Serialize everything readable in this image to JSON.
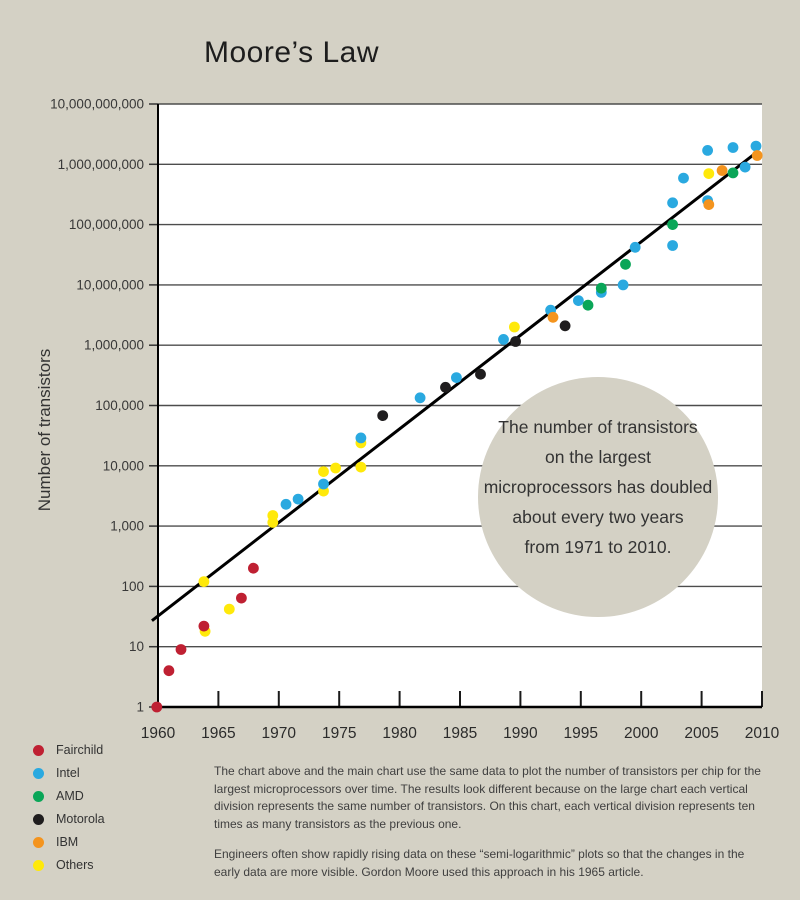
{
  "title": "Moore’s Law",
  "y_axis_title": "Number of transistors",
  "colors": {
    "background": "#d4d1c5",
    "plot_background": "#ffffff",
    "gridline": "#4d4d4d",
    "axis": "#000000",
    "trend_line": "#000000",
    "tick_text": "#383838"
  },
  "legend": {
    "items": [
      {
        "label": "Fairchild",
        "color": "#bf2032"
      },
      {
        "label": "Intel",
        "color": "#2aa9e0"
      },
      {
        "label": "AMD",
        "color": "#0aa658"
      },
      {
        "label": "Motorola",
        "color": "#1f1d1e"
      },
      {
        "label": "IBM",
        "color": "#f4941e"
      },
      {
        "label": "Others",
        "color": "#ffe90a"
      }
    ]
  },
  "footnotes": {
    "para1": "The chart above and the main chart use the same data to plot the number of transistors per chip for the largest microprocessors over time. The results look different because on the large chart each vertical division represents the same number of transistors. On this chart, each vertical division represents ten times as many transistors as the previous one.",
    "para2": "Engineers often show rapidly rising data on these “semi-logarithmic” plots so that the changes in the early data are more visible. Gordon Moore used this approach in his 1965 article."
  },
  "chart_data": {
    "type": "scatter",
    "x_range": [
      1960,
      2010
    ],
    "y_log_range": [
      0,
      10
    ],
    "x_ticks": [
      1960,
      1965,
      1970,
      1975,
      1980,
      1985,
      1990,
      1995,
      2000,
      2005,
      2010
    ],
    "y_tick_labels": [
      "10,000,000,000",
      "1,000,000,000",
      "100,000,000",
      "10,000,000",
      "1,000,000",
      "100,000",
      "10,000",
      "1,000",
      "100",
      "10",
      "1"
    ],
    "annotation": {
      "lines": [
        "The number of transistors",
        "on the largest",
        "microprocessors has doubled",
        "about every two years",
        "from 1971 to 2010."
      ]
    },
    "trend_line": {
      "from": {
        "year": 1959.5,
        "value": 27
      },
      "to": {
        "year": 2009.6,
        "value": 1600000000
      }
    },
    "series": [
      {
        "name": "Fairchild",
        "points": [
          [
            1959.9,
            1
          ],
          [
            1960.9,
            4
          ],
          [
            1961.9,
            9
          ],
          [
            1963.8,
            22
          ],
          [
            1966.9,
            64
          ],
          [
            1967.9,
            200
          ]
        ]
      },
      {
        "name": "Intel",
        "points": [
          [
            1970.6,
            2300
          ],
          [
            1971.6,
            2800
          ],
          [
            1973.7,
            5000
          ],
          [
            1976.8,
            29000
          ],
          [
            1981.7,
            134000
          ],
          [
            1984.7,
            290000
          ],
          [
            1988.6,
            1250000
          ],
          [
            1992.5,
            3800000
          ],
          [
            1994.8,
            5500000
          ],
          [
            1996.7,
            7500000
          ],
          [
            1998.5,
            10000000
          ],
          [
            1999.5,
            42000000
          ],
          [
            2002.6,
            45000000
          ],
          [
            2002.6,
            230000000
          ],
          [
            2003.5,
            590000000
          ],
          [
            2005.5,
            250000000
          ],
          [
            2005.5,
            1700000000
          ],
          [
            2007.6,
            1900000000
          ],
          [
            2008.6,
            900000000
          ],
          [
            2009.5,
            2000000000
          ]
        ]
      },
      {
        "name": "AMD",
        "points": [
          [
            1995.6,
            4600000
          ],
          [
            1996.7,
            8800000
          ],
          [
            1998.7,
            22000000
          ],
          [
            2002.6,
            100000000
          ],
          [
            2007.6,
            720000000
          ]
        ]
      },
      {
        "name": "Motorola",
        "points": [
          [
            1978.6,
            68000
          ],
          [
            1983.8,
            200000
          ],
          [
            1986.7,
            330000
          ],
          [
            1989.6,
            1150000
          ],
          [
            1993.7,
            2100000
          ]
        ]
      },
      {
        "name": "IBM",
        "points": [
          [
            1992.7,
            2900000
          ],
          [
            2005.6,
            215000000
          ],
          [
            2006.7,
            790000000
          ],
          [
            2009.6,
            1400000000
          ]
        ]
      },
      {
        "name": "Others",
        "points": [
          [
            1963.8,
            120
          ],
          [
            1963.9,
            18
          ],
          [
            1965.9,
            42
          ],
          [
            1969.5,
            1500
          ],
          [
            1969.5,
            1150
          ],
          [
            1973.7,
            8000
          ],
          [
            1973.7,
            3800
          ],
          [
            1974.7,
            9200
          ],
          [
            1976.8,
            9500
          ],
          [
            1976.8,
            24000
          ],
          [
            1989.5,
            2000000
          ],
          [
            2005.6,
            700000000
          ]
        ]
      }
    ]
  }
}
